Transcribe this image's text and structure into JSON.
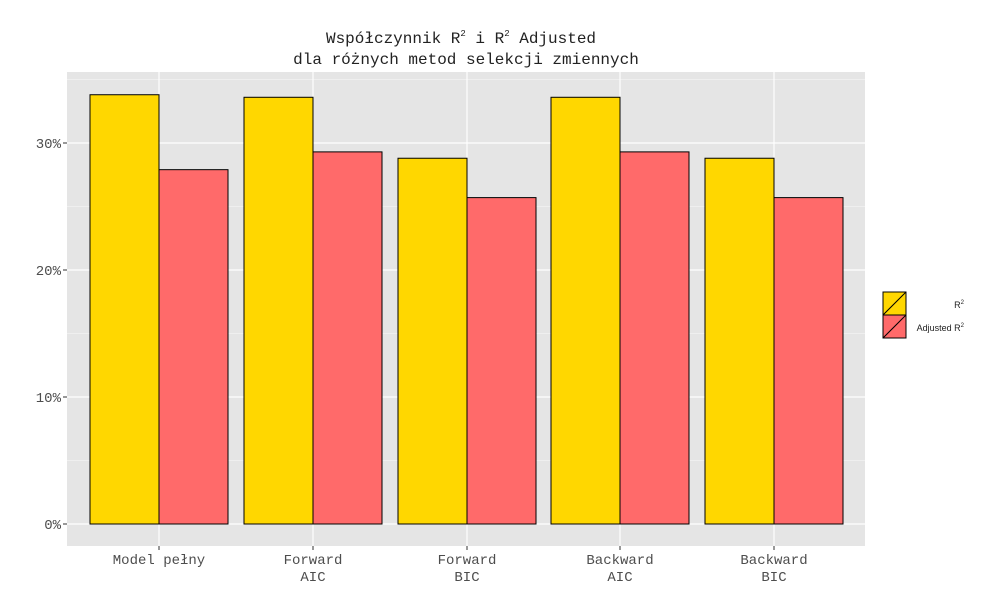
{
  "chart_data": {
    "type": "bar",
    "title": {
      "line1_prefix": "Współczynnik R",
      "line1_sup1": "2",
      "line1_middle": " i R",
      "line1_sup2": "2",
      "line1_suffix": " Adjusted",
      "line2": "dla różnych metod selekcji zmiennych"
    },
    "xlabel": "",
    "ylabel": "",
    "categories": [
      [
        "Model pełny"
      ],
      [
        "Forward",
        "AIC"
      ],
      [
        "Forward",
        "BIC"
      ],
      [
        "Backward",
        "AIC"
      ],
      [
        "Backward",
        "BIC"
      ]
    ],
    "series": [
      {
        "name": "R²",
        "legend_base": "R",
        "legend_sup": "2",
        "color": "#FFD700",
        "values": [
          33.8,
          33.6,
          28.8,
          33.6,
          28.8
        ]
      },
      {
        "name": "Adjusted R²",
        "legend_base": "Adjusted R",
        "legend_sup": "2",
        "color": "#FF6A6A",
        "values": [
          27.9,
          29.3,
          25.7,
          29.3,
          25.7
        ]
      }
    ],
    "ylim": [
      0,
      35
    ],
    "yticks": [
      0,
      10,
      20,
      30
    ],
    "ytick_labels": [
      "0%",
      "10%",
      "20%",
      "30%"
    ],
    "y_unit": "%",
    "grid": true,
    "panel_background": "#E5E5E5",
    "bar_outline": "#000000",
    "legend_position": "right"
  }
}
